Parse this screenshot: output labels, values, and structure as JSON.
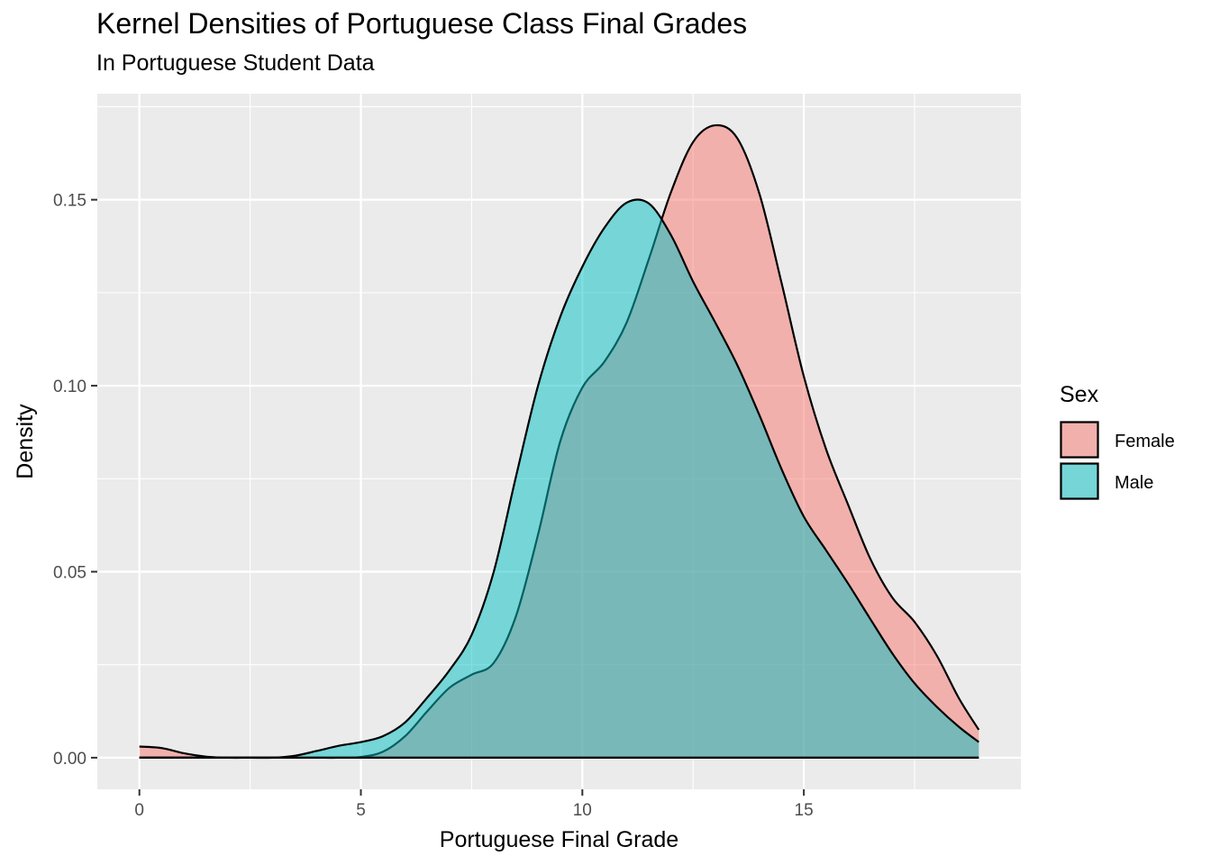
{
  "chart_data": {
    "type": "area",
    "title": "Kernel Densities of Portuguese Class Final Grades",
    "subtitle": "In Portuguese Student Data",
    "xlabel": "Portuguese Final Grade",
    "ylabel": "Density",
    "xlim": [
      -0.95,
      19.9
    ],
    "ylim": [
      -0.0085,
      0.1785
    ],
    "x_ticks": [
      0,
      5,
      10,
      15
    ],
    "x_tick_labels": [
      "0",
      "5",
      "10",
      "15"
    ],
    "y_ticks": [
      0.0,
      0.05,
      0.1,
      0.15
    ],
    "y_tick_labels": [
      "0.00",
      "0.05",
      "0.10",
      "0.15"
    ],
    "grid": true,
    "legend": {
      "title": "Sex",
      "position": "right"
    },
    "series": [
      {
        "name": "Female",
        "color": "#F8766D",
        "x": [
          0,
          0.5,
          1,
          1.5,
          2,
          2.5,
          3,
          3.5,
          4,
          4.5,
          5,
          5.5,
          6,
          6.5,
          7,
          7.5,
          8,
          8.5,
          9,
          9.5,
          10,
          10.5,
          11,
          11.5,
          12,
          12.5,
          13,
          13.5,
          14,
          14.5,
          15,
          15.5,
          16,
          16.5,
          17,
          17.5,
          18,
          18.5,
          18.95
        ],
        "y": [
          0.003,
          0.0026,
          0.0012,
          0.0003,
          0.0,
          0.0,
          0.0,
          0.0,
          0.0,
          0.0,
          0.0002,
          0.0016,
          0.0058,
          0.0125,
          0.0188,
          0.0223,
          0.0255,
          0.038,
          0.06,
          0.085,
          0.0995,
          0.1065,
          0.117,
          0.134,
          0.152,
          0.1655,
          0.17,
          0.1665,
          0.1515,
          0.1275,
          0.1025,
          0.083,
          0.068,
          0.0535,
          0.043,
          0.0365,
          0.0275,
          0.016,
          0.0075
        ]
      },
      {
        "name": "Male",
        "color": "#00BFC4",
        "x": [
          0,
          0.5,
          1,
          1.5,
          2,
          2.5,
          3,
          3.5,
          4,
          4.5,
          5,
          5.5,
          6,
          6.5,
          7,
          7.5,
          8,
          8.5,
          9,
          9.5,
          10,
          10.5,
          11,
          11.5,
          12,
          12.5,
          13,
          13.5,
          14,
          14.5,
          15,
          15.5,
          16,
          16.5,
          17,
          17.5,
          18,
          18.5,
          18.95
        ],
        "y": [
          0.0,
          0.0,
          0.0,
          0.0,
          0.0,
          0.0,
          0.0,
          0.0005,
          0.0018,
          0.0032,
          0.0042,
          0.0058,
          0.0095,
          0.0162,
          0.0235,
          0.033,
          0.05,
          0.0755,
          0.1,
          0.1185,
          0.132,
          0.1425,
          0.1492,
          0.149,
          0.1405,
          0.128,
          0.117,
          0.1055,
          0.092,
          0.0775,
          0.0648,
          0.0558,
          0.0468,
          0.0373,
          0.028,
          0.02,
          0.0137,
          0.0083,
          0.0042
        ]
      }
    ]
  }
}
